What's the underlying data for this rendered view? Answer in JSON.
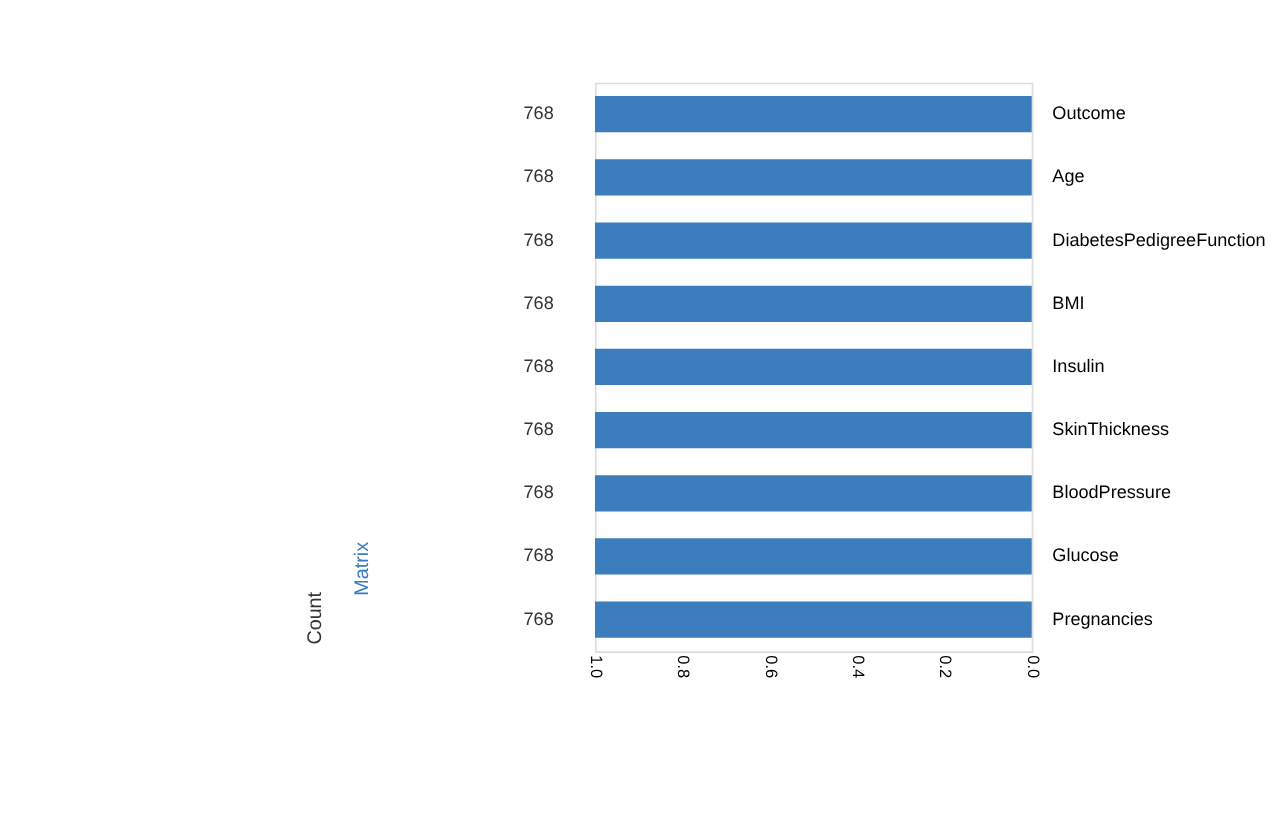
{
  "chart_data": {
    "type": "bar",
    "orientation": "horizontal",
    "categories": [
      "Outcome",
      "Age",
      "DiabetesPedigreeFunction",
      "BMI",
      "Insulin",
      "SkinThickness",
      "BloodPressure",
      "Glucose",
      "Pregnancies"
    ],
    "values": [
      1.0,
      1.0,
      1.0,
      1.0,
      1.0,
      1.0,
      1.0,
      1.0,
      1.0
    ],
    "color": "#3b7dbd",
    "xlim": [
      1.0,
      0.0
    ],
    "xticks": [
      {
        "value": 1.0,
        "label": "1.0"
      },
      {
        "value": 0.8,
        "label": "0.8"
      },
      {
        "value": 0.6,
        "label": "0.6"
      },
      {
        "value": 0.4,
        "label": "0.4"
      },
      {
        "value": 0.2,
        "label": "0.2"
      },
      {
        "value": 0.0,
        "label": "0.0"
      }
    ],
    "grid": false,
    "annotations": [
      "768",
      "768",
      "768",
      "768",
      "768",
      "768",
      "768",
      "768",
      "768",
      "Count",
      "Matrix"
    ]
  }
}
